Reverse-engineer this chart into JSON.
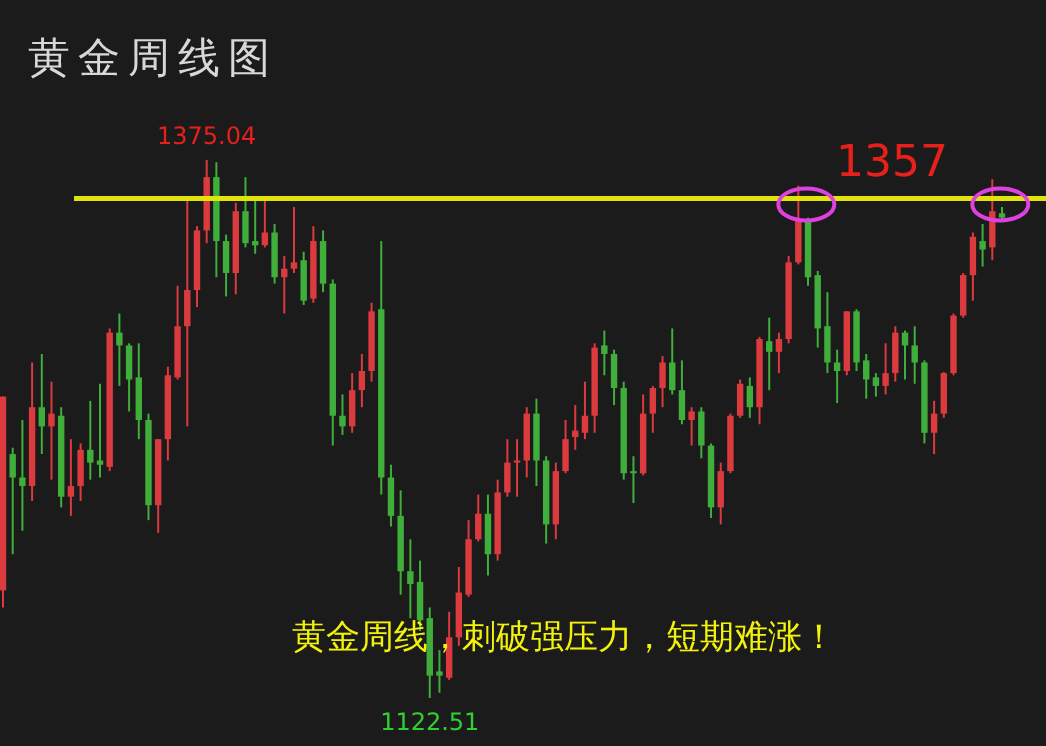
{
  "chart_data": {
    "type": "candlestick",
    "title": "黄金周线图",
    "categories": [
      null,
      null,
      null,
      null,
      null,
      null,
      null,
      null,
      null,
      null,
      null,
      null,
      null,
      null,
      null,
      null,
      null,
      null,
      null,
      null,
      null,
      null,
      null,
      null,
      null,
      null,
      null,
      null,
      null,
      null,
      null,
      null,
      null,
      null,
      null,
      null,
      null,
      null,
      null,
      null,
      null,
      null,
      null,
      null,
      null,
      null,
      null,
      null,
      null,
      null,
      null,
      null,
      null,
      null,
      null,
      null,
      null,
      null,
      null,
      null,
      null,
      null,
      null,
      null,
      null,
      null,
      null,
      null,
      null,
      null,
      null,
      null,
      null,
      null,
      null,
      null,
      null,
      null,
      null,
      null,
      null,
      null,
      null,
      null,
      null,
      null,
      null,
      null,
      null,
      null,
      null,
      null,
      null,
      null,
      null,
      null,
      null,
      null,
      null,
      null,
      null,
      null,
      null,
      null
    ],
    "ohlc": [
      [
        1173,
        1264,
        1165,
        1264
      ],
      [
        1237,
        1240,
        1190,
        1226
      ],
      [
        1226,
        1253,
        1201,
        1222
      ],
      [
        1222,
        1280,
        1215,
        1259
      ],
      [
        1259,
        1284,
        1237,
        1250
      ],
      [
        1250,
        1271,
        1225,
        1256
      ],
      [
        1255,
        1259,
        1212,
        1217
      ],
      [
        1217,
        1244,
        1208,
        1222
      ],
      [
        1222,
        1242,
        1215,
        1239
      ],
      [
        1239,
        1262,
        1225,
        1233
      ],
      [
        1234,
        1270,
        1226,
        1232
      ],
      [
        1231,
        1296,
        1229,
        1294
      ],
      [
        1294,
        1303,
        1269,
        1288
      ],
      [
        1288,
        1289,
        1257,
        1272
      ],
      [
        1273,
        1289,
        1244,
        1253
      ],
      [
        1253,
        1256,
        1206,
        1213
      ],
      [
        1213,
        1244,
        1200,
        1244
      ],
      [
        1244,
        1278,
        1234,
        1274
      ],
      [
        1273,
        1316,
        1272,
        1297
      ],
      [
        1297,
        1358,
        1250,
        1314
      ],
      [
        1314,
        1344,
        1306,
        1342
      ],
      [
        1342,
        1375.04,
        1336,
        1367
      ],
      [
        1367,
        1374,
        1320,
        1337
      ],
      [
        1337,
        1340,
        1311,
        1322
      ],
      [
        1322,
        1355,
        1312,
        1351
      ],
      [
        1351,
        1367,
        1334,
        1336
      ],
      [
        1337,
        1358,
        1331,
        1335
      ],
      [
        1335,
        1358,
        1334,
        1341
      ],
      [
        1341,
        1345,
        1317,
        1320
      ],
      [
        1320,
        1330,
        1303,
        1324
      ],
      [
        1324,
        1353,
        1322,
        1327
      ],
      [
        1328,
        1332,
        1307,
        1309
      ],
      [
        1310,
        1344,
        1308,
        1337
      ],
      [
        1337,
        1342,
        1313,
        1317
      ],
      [
        1317,
        1319,
        1241,
        1255
      ],
      [
        1255,
        1265,
        1246,
        1250
      ],
      [
        1250,
        1275,
        1247,
        1267
      ],
      [
        1267,
        1284,
        1259,
        1276
      ],
      [
        1276,
        1308,
        1271,
        1304
      ],
      [
        1305,
        1337,
        1218,
        1226
      ],
      [
        1226,
        1232,
        1203,
        1208
      ],
      [
        1208,
        1220,
        1171,
        1182
      ],
      [
        1182,
        1197,
        1160,
        1176
      ],
      [
        1177,
        1187,
        1154,
        1159
      ],
      [
        1160,
        1165,
        1122.51,
        1133
      ],
      [
        1135,
        1145,
        1125,
        1133
      ],
      [
        1132,
        1163,
        1131,
        1151
      ],
      [
        1151,
        1184,
        1147,
        1172
      ],
      [
        1171,
        1206,
        1170,
        1197
      ],
      [
        1197,
        1218,
        1196,
        1209
      ],
      [
        1209,
        1218,
        1180,
        1190
      ],
      [
        1190,
        1225,
        1187,
        1219
      ],
      [
        1219,
        1244,
        1217,
        1233
      ],
      [
        1233,
        1244,
        1217,
        1234
      ],
      [
        1234,
        1259,
        1226,
        1256
      ],
      [
        1256,
        1263,
        1222,
        1234
      ],
      [
        1234,
        1236,
        1195,
        1204
      ],
      [
        1204,
        1233,
        1197,
        1229
      ],
      [
        1229,
        1253,
        1228,
        1244
      ],
      [
        1245,
        1260,
        1239,
        1248
      ],
      [
        1247,
        1271,
        1244,
        1255
      ],
      [
        1255,
        1289,
        1247,
        1287
      ],
      [
        1288,
        1295,
        1274,
        1284
      ],
      [
        1284,
        1286,
        1260,
        1268
      ],
      [
        1268,
        1271,
        1225,
        1228
      ],
      [
        1229,
        1236,
        1214,
        1228
      ],
      [
        1228,
        1265,
        1227,
        1256
      ],
      [
        1256,
        1269,
        1247,
        1268
      ],
      [
        1268,
        1283,
        1259,
        1280
      ],
      [
        1280,
        1296,
        1265,
        1267
      ],
      [
        1267,
        1281,
        1251,
        1253
      ],
      [
        1253,
        1259,
        1241,
        1257
      ],
      [
        1257,
        1259,
        1235,
        1241
      ],
      [
        1241,
        1242,
        1207,
        1212
      ],
      [
        1212,
        1233,
        1204,
        1229
      ],
      [
        1229,
        1256,
        1228,
        1255
      ],
      [
        1255,
        1272,
        1254,
        1270
      ],
      [
        1269,
        1273,
        1254,
        1259
      ],
      [
        1259,
        1292,
        1251,
        1291
      ],
      [
        1290,
        1301,
        1267,
        1285
      ],
      [
        1285,
        1294,
        1275,
        1291
      ],
      [
        1291,
        1330,
        1289,
        1327
      ],
      [
        1327,
        1363,
        1326,
        1347
      ],
      [
        1347,
        1348,
        1316,
        1320
      ],
      [
        1321,
        1323,
        1287,
        1296
      ],
      [
        1297,
        1313,
        1275,
        1280
      ],
      [
        1280,
        1286,
        1261,
        1276
      ],
      [
        1276,
        1304,
        1274,
        1304
      ],
      [
        1304,
        1305,
        1276,
        1280
      ],
      [
        1281,
        1284,
        1263,
        1272
      ],
      [
        1273,
        1275,
        1264,
        1269
      ],
      [
        1269,
        1289,
        1265,
        1275
      ],
      [
        1275,
        1297,
        1271,
        1294
      ],
      [
        1294,
        1295,
        1272,
        1288
      ],
      [
        1288,
        1297,
        1270,
        1280
      ],
      [
        1280,
        1281,
        1242,
        1247
      ],
      [
        1247,
        1262,
        1237,
        1256
      ],
      [
        1256,
        1275.5,
        1254,
        1275
      ],
      [
        1275,
        1303,
        1274,
        1302
      ],
      [
        1302,
        1322,
        1301,
        1321
      ],
      [
        1321,
        1341,
        1309,
        1339
      ],
      [
        1337,
        1345,
        1325,
        1333
      ],
      [
        1334,
        1366,
        1328,
        1351
      ],
      [
        1350,
        1353,
        1346,
        1348
      ]
    ],
    "ref_lines": [
      {
        "axis": "y",
        "value": 1357,
        "label": "1357",
        "color": "#e3e30c"
      }
    ],
    "annotations": [
      {
        "text": "1375.04",
        "y": 1375.04
      },
      {
        "text": "1122.51",
        "y": 1122.51
      },
      "黄金周线，刺破强压力，短期难涨！"
    ]
  }
}
